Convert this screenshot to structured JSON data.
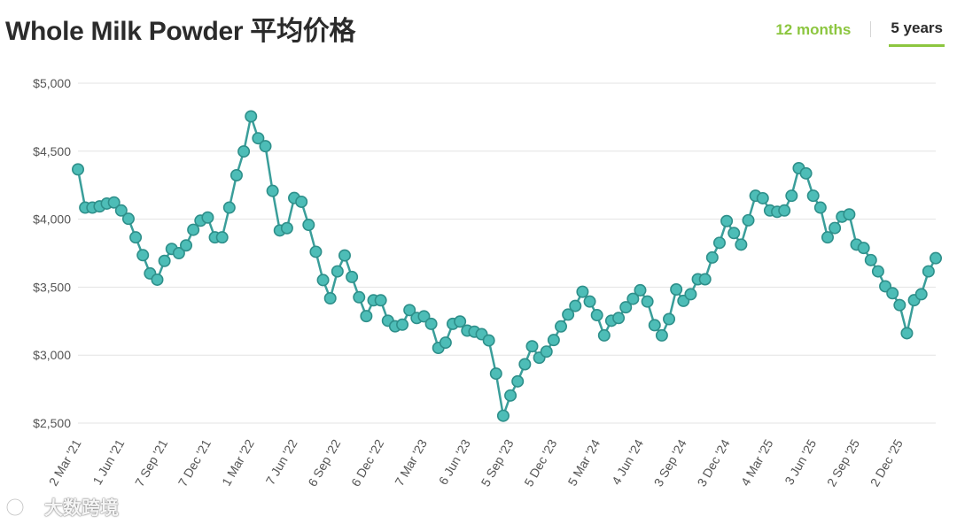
{
  "title": "Whole Milk Powder 平均价格",
  "tabs": [
    {
      "label": "12 months",
      "active": false
    },
    {
      "label": "5 years",
      "active": true
    }
  ],
  "colors": {
    "line": "#3a9e9a",
    "marker_fill": "#4dbdb7",
    "accent": "#8cc63f",
    "grid": "#e3e3e3",
    "text": "#555555"
  },
  "watermark": {
    "text": "大数跨境",
    "icon": "logo-icon"
  },
  "chart_data": {
    "type": "line",
    "title": "Whole Milk Powder 平均价格",
    "xlabel": "",
    "ylabel": "",
    "ylim": [
      2500,
      5000
    ],
    "yticks": [
      5000,
      4500,
      4000,
      3500,
      3000,
      2500
    ],
    "ytick_labels": [
      "$5,000",
      "$4,500",
      "$4,000",
      "$3,500",
      "$3,000",
      "$2,500"
    ],
    "grid": "horizontal",
    "xtick_labels": [
      {
        "label": "2 Mar '21",
        "index": 0
      },
      {
        "label": "1 Jun '21",
        "index": 6
      },
      {
        "label": "7 Sep '21",
        "index": 12
      },
      {
        "label": "7 Dec '21",
        "index": 18
      },
      {
        "label": "1 Mar '22",
        "index": 24
      },
      {
        "label": "7 Jun '22",
        "index": 30
      },
      {
        "label": "6 Sep '22",
        "index": 36
      },
      {
        "label": "6 Dec '22",
        "index": 42
      },
      {
        "label": "7 Mar '23",
        "index": 48
      },
      {
        "label": "6 Jun '23",
        "index": 54
      },
      {
        "label": "5 Sep '23",
        "index": 60
      },
      {
        "label": "5 Dec '23",
        "index": 66
      },
      {
        "label": "5 Mar '24",
        "index": 72
      },
      {
        "label": "4 Jun '24",
        "index": 78
      },
      {
        "label": "3 Sep '24",
        "index": 84
      },
      {
        "label": "3 Dec '24",
        "index": 90
      },
      {
        "label": "4 Mar '25",
        "index": 96
      },
      {
        "label": "3 Jun '25",
        "index": 102
      },
      {
        "label": "2 Sep '25",
        "index": 108
      },
      {
        "label": "2 Dec '25",
        "index": 114
      }
    ],
    "series": [
      {
        "values": [
          4366,
          4085,
          4085,
          4094,
          4115,
          4123,
          4064,
          4003,
          3866,
          3735,
          3601,
          3555,
          3693,
          3781,
          3750,
          3807,
          3922,
          3989,
          4012,
          3866,
          3866,
          4085,
          4323,
          4498,
          4756,
          4595,
          4537,
          4208,
          3917,
          3934,
          4156,
          4128,
          3958,
          3760,
          3552,
          3418,
          3616,
          3733,
          3575,
          3426,
          3287,
          3403,
          3403,
          3253,
          3212,
          3224,
          3331,
          3273,
          3285,
          3230,
          3053,
          3092,
          3230,
          3247,
          3180,
          3172,
          3154,
          3108,
          2864,
          2554,
          2703,
          2807,
          2933,
          3065,
          2981,
          3026,
          3111,
          3211,
          3298,
          3362,
          3466,
          3394,
          3294,
          3145,
          3253,
          3273,
          3352,
          3414,
          3477,
          3394,
          3220,
          3145,
          3265,
          3483,
          3399,
          3448,
          3558,
          3558,
          3718,
          3826,
          3986,
          3898,
          3813,
          3992,
          4172,
          4154,
          4064,
          4054,
          4064,
          4172,
          4375,
          4337,
          4172,
          4085,
          3866,
          3935,
          4018,
          4035,
          3813,
          3788,
          3699,
          3616,
          3506,
          3455,
          3368,
          3161,
          3404,
          3448,
          3616,
          3713
        ]
      }
    ]
  }
}
